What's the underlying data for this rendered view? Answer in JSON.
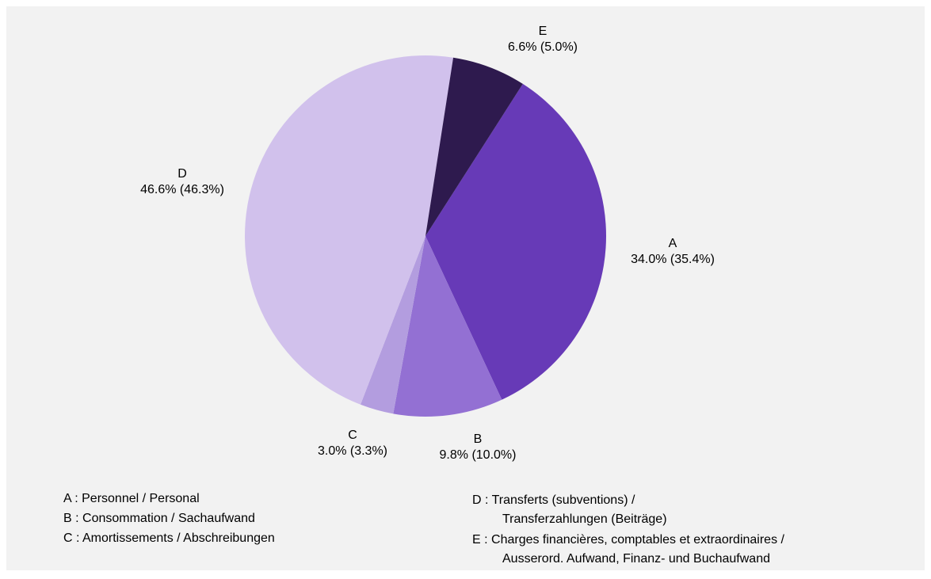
{
  "chart_data": {
    "type": "pie",
    "categories": [
      "A",
      "B",
      "C",
      "D",
      "E"
    ],
    "values": [
      34.0,
      9.8,
      3.0,
      46.6,
      6.6
    ],
    "value_labels": [
      "34.0% (35.4%)",
      "9.8% (10.0%)",
      "3.0% (3.3%)",
      "46.6% (46.3%)",
      "6.6% (5.0%)"
    ],
    "colors": [
      "#673ab7",
      "#9370d3",
      "#b39ddf",
      "#d1c1ec",
      "#2e1a4e"
    ],
    "legend": [
      [
        "A : Personnel / Personal"
      ],
      [
        "B : Consommation / Sachaufwand"
      ],
      [
        "C : Amortissements / Abschreibungen"
      ],
      [
        "D : Transferts (subventions) /",
        "Transferzahlungen (Beiträge)"
      ],
      [
        "E : Charges financières, comptables et extraordinaires /",
        "Ausserord. Aufwand, Finanz- und Buchaufwand"
      ]
    ]
  }
}
